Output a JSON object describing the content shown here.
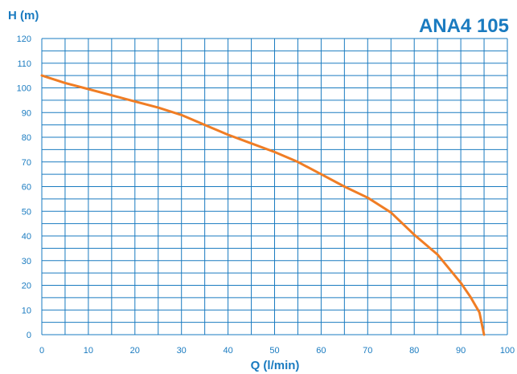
{
  "chart_data": {
    "type": "line",
    "title": "ANA4 105",
    "xlabel": "Q (l/min)",
    "ylabel": "H (m)",
    "xlim": [
      0,
      100
    ],
    "ylim": [
      0,
      120
    ],
    "x_ticks": [
      0,
      10,
      20,
      30,
      40,
      50,
      60,
      70,
      80,
      90,
      100
    ],
    "y_ticks": [
      0,
      10,
      20,
      30,
      40,
      50,
      60,
      70,
      80,
      90,
      100,
      110,
      120
    ],
    "x_tick_labels": [
      "0",
      "10",
      "20",
      "30",
      "40",
      "50",
      "60",
      "70",
      "80",
      "90",
      "100"
    ],
    "y_tick_labels": [
      "0",
      "10",
      "20",
      "30",
      "40",
      "50",
      "60",
      "70",
      "80",
      "90",
      "100",
      "110",
      "120"
    ],
    "x_minor_step": 5,
    "y_minor_step": 5,
    "grid": true,
    "colors": {
      "axis_text": "#1a7bc0",
      "grid": "#1a7bc0",
      "curve": "#f07d24"
    },
    "series": [
      {
        "x": [
          0,
          5,
          10,
          15,
          20,
          25,
          30,
          35,
          40,
          45,
          50,
          55,
          60,
          65,
          70,
          75,
          80,
          85,
          90,
          92,
          94,
          95
        ],
        "y": [
          105,
          102,
          99.5,
          97,
          94.5,
          92,
          89,
          85,
          81,
          77.5,
          74,
          70,
          65,
          60,
          55.5,
          49.5,
          40.5,
          32.5,
          21,
          15.5,
          9,
          0
        ]
      }
    ]
  }
}
